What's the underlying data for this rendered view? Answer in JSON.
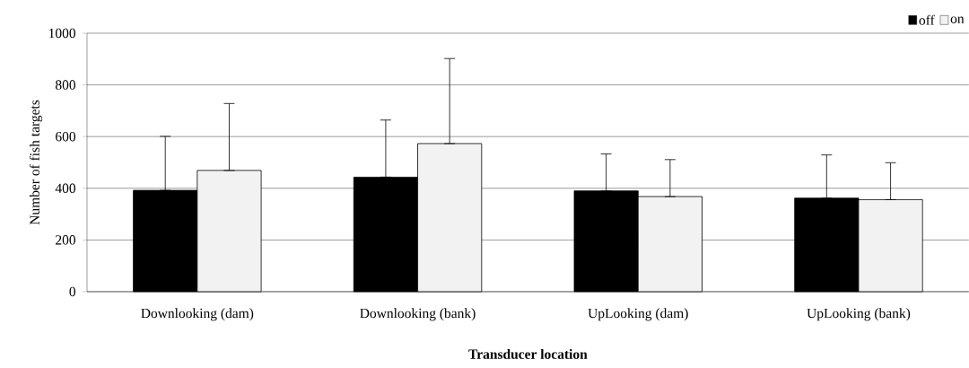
{
  "chart_data": {
    "type": "bar",
    "xlabel": "Transducer location",
    "ylabel": "Number of fish targets",
    "categories": [
      "Downlooking (dam)",
      "Downlooking (bank)",
      "UpLooking (dam)",
      "UpLooking (bank)"
    ],
    "series": [
      {
        "name": "off",
        "color": "#000000",
        "values": [
          392,
          443,
          390,
          362
        ],
        "errors": [
          [
            392,
            601
          ],
          [
            443,
            664
          ],
          [
            390,
            533
          ],
          [
            362,
            529
          ]
        ]
      },
      {
        "name": "on",
        "color": "#f2f2f2",
        "values": [
          469,
          573,
          368,
          356
        ],
        "errors": [
          [
            469,
            728
          ],
          [
            573,
            902
          ],
          [
            368,
            511
          ],
          [
            356,
            499
          ]
        ]
      }
    ],
    "ylim": [
      0,
      1000
    ],
    "yticks": [
      0,
      200,
      400,
      600,
      800,
      1000
    ],
    "grid": "y",
    "legend": "top right"
  }
}
